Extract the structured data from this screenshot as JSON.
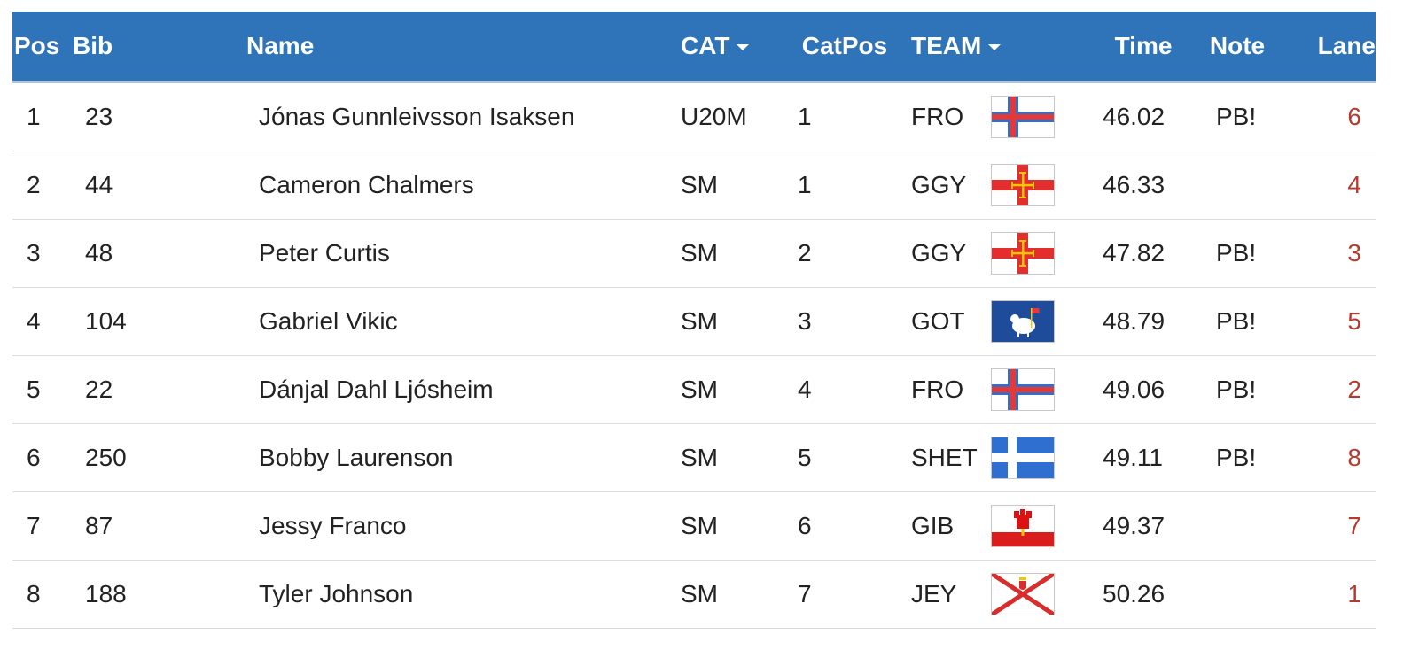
{
  "headers": {
    "pos": "Pos",
    "bib": "Bib",
    "name": "Name",
    "cat": "CAT",
    "catpos": "CatPos",
    "team": "TEAM",
    "time": "Time",
    "note": "Note",
    "lane": "Lane"
  },
  "rows": [
    {
      "pos": "1",
      "bib": "23",
      "name": "Jónas Gunnleivsson Isaksen",
      "cat": "U20M",
      "catpos": "1",
      "team": "FRO",
      "flag": "faroe-islands-flag",
      "time": "46.02",
      "note": "PB!",
      "lane": "6"
    },
    {
      "pos": "2",
      "bib": "44",
      "name": "Cameron Chalmers",
      "cat": "SM",
      "catpos": "1",
      "team": "GGY",
      "flag": "guernsey-flag",
      "time": "46.33",
      "note": "",
      "lane": "4"
    },
    {
      "pos": "3",
      "bib": "48",
      "name": "Peter Curtis",
      "cat": "SM",
      "catpos": "2",
      "team": "GGY",
      "flag": "guernsey-flag",
      "time": "47.82",
      "note": "PB!",
      "lane": "3"
    },
    {
      "pos": "4",
      "bib": "104",
      "name": "Gabriel Vikic",
      "cat": "SM",
      "catpos": "3",
      "team": "GOT",
      "flag": "gotland-flag",
      "time": "48.79",
      "note": "PB!",
      "lane": "5"
    },
    {
      "pos": "5",
      "bib": "22",
      "name": "Dánjal Dahl Ljósheim",
      "cat": "SM",
      "catpos": "4",
      "team": "FRO",
      "flag": "faroe-islands-flag",
      "time": "49.06",
      "note": "PB!",
      "lane": "2"
    },
    {
      "pos": "6",
      "bib": "250",
      "name": "Bobby Laurenson",
      "cat": "SM",
      "catpos": "5",
      "team": "SHET",
      "flag": "shetland-flag",
      "time": "49.11",
      "note": "PB!",
      "lane": "8"
    },
    {
      "pos": "7",
      "bib": "87",
      "name": "Jessy Franco",
      "cat": "SM",
      "catpos": "6",
      "team": "GIB",
      "flag": "gibraltar-flag",
      "time": "49.37",
      "note": "",
      "lane": "7"
    },
    {
      "pos": "8",
      "bib": "188",
      "name": "Tyler Johnson",
      "cat": "SM",
      "catpos": "7",
      "team": "JEY",
      "flag": "jersey-flag",
      "time": "50.26",
      "note": "",
      "lane": "1"
    }
  ],
  "colors": {
    "header_bg": "#2f74b8",
    "lane_text": "#b33a2e"
  }
}
